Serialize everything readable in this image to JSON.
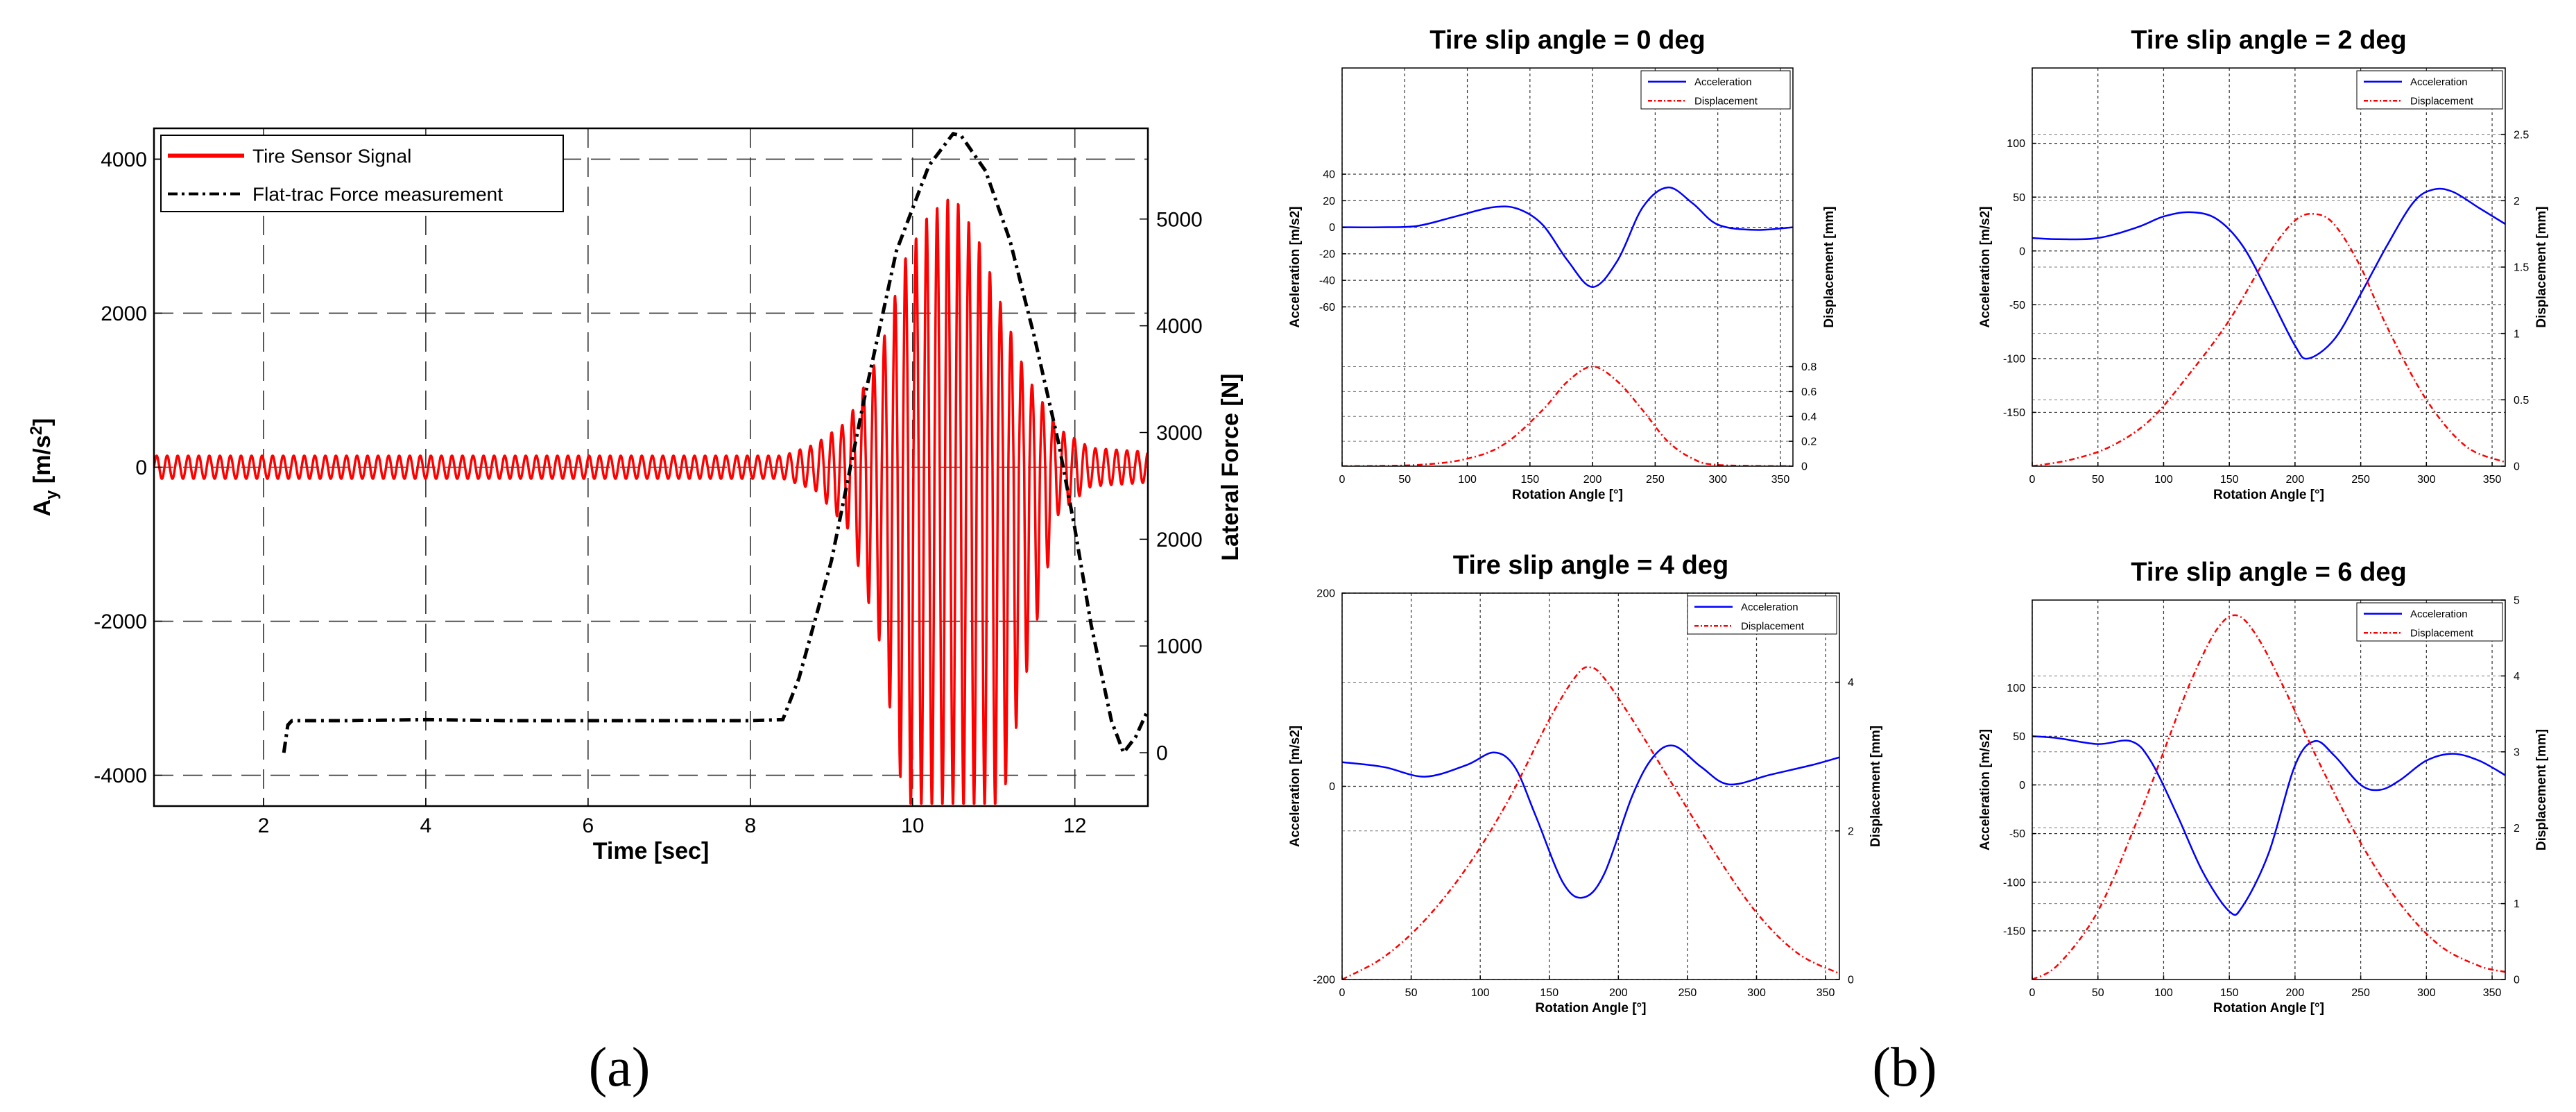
{
  "figure": {
    "panel_a_label": "(a)",
    "panel_b_label": "(b)"
  },
  "colors": {
    "red": "#ff0000",
    "blue": "#0000ff",
    "black": "#000000",
    "grid": "#222222"
  },
  "chart_data": [
    {
      "id": "a",
      "type": "line",
      "title": "",
      "xlabel": "Time [sec]",
      "ylabel_left": "Ay [m/s2]",
      "ylabel_left_parts": {
        "base": "A",
        "sub": "y",
        "unit_base": " [m/s",
        "unit_sup": "2",
        "unit_close": "]"
      },
      "ylabel_right": "Lateral Force [N]",
      "xlim": [
        0.65,
        12.9
      ],
      "ylim_left": [
        -4400,
        4400
      ],
      "ylim_right": [
        -500,
        5850
      ],
      "xticks": [
        2,
        4,
        6,
        8,
        10,
        12
      ],
      "yticks_left": [
        -4000,
        -2000,
        0,
        2000,
        4000
      ],
      "yticks_right": [
        0,
        1000,
        2000,
        3000,
        4000,
        5000
      ],
      "grid": true,
      "legend": {
        "placement": "top-left",
        "entries": [
          "Tire Sensor Signal",
          "Flat-trac Force measurement"
        ]
      },
      "series": [
        {
          "name": "Tire Sensor Signal",
          "axis": "left",
          "style": "solid",
          "color": "#ff0000",
          "description": "Oscillating signal, about ±150 m/s2 until ~8.5 s, growing to a peak near ±3500 m/s2 (clipped below -4400) around 10–11 s, then decaying back to ±200 by 12.9 s",
          "envelope": {
            "t": [
              0.65,
              8.4,
              8.8,
              9.2,
              9.6,
              9.9,
              10.2,
              10.5,
              10.8,
              11.1,
              11.4,
              11.8,
              12.2,
              12.9
            ],
            "amp_pos": [
              150,
              150,
              300,
              600,
              1500,
              2700,
              3300,
              3550,
              3000,
              2100,
              1200,
              500,
              250,
              200
            ],
            "amp_neg": [
              150,
              150,
              300,
              800,
              2300,
              4400,
              4400,
              4400,
              4400,
              4400,
              2700,
              600,
              250,
              200
            ]
          },
          "period_s": 0.13
        },
        {
          "name": "Flat-trac Force measurement",
          "axis": "right",
          "style": "dash-dot",
          "color": "#000000",
          "x": [
            2.25,
            2.3,
            2.35,
            3.0,
            4.0,
            5.0,
            6.0,
            7.0,
            8.0,
            8.4,
            8.6,
            9.0,
            9.4,
            9.8,
            10.2,
            10.5,
            10.6,
            10.9,
            11.2,
            11.5,
            11.8,
            12.0,
            12.2,
            12.45,
            12.6,
            12.75,
            12.9
          ],
          "y": [
            0,
            260,
            300,
            300,
            310,
            300,
            300,
            300,
            300,
            310,
            700,
            1800,
            3300,
            4700,
            5500,
            5800,
            5780,
            5450,
            4800,
            3900,
            2900,
            2100,
            1200,
            300,
            0,
            150,
            400
          ]
        }
      ]
    },
    {
      "id": "b1",
      "type": "line",
      "title": "Tire slip angle = 0 deg",
      "xlabel": "Rotation Angle [°]",
      "ylabel_left": "Acceleration [m/s2]",
      "ylabel_right": "Displacement [mm]",
      "xlim": [
        0,
        360
      ],
      "ylim_left": [
        -180,
        120
      ],
      "ylim_right": [
        0,
        3.2
      ],
      "xticks": [
        0,
        50,
        100,
        150,
        200,
        250,
        300,
        350
      ],
      "yticks_left": [
        -60,
        -40,
        -20,
        0,
        20,
        40
      ],
      "yticks_right": [
        0,
        0.2,
        0.4,
        0.6,
        0.8
      ],
      "grid": true,
      "legend": {
        "placement": "top-right",
        "entries": [
          "Acceleration",
          "Displacement"
        ]
      },
      "series": [
        {
          "name": "Acceleration",
          "axis": "left",
          "style": "solid",
          "color": "#0000ff",
          "x": [
            0,
            30,
            60,
            90,
            120,
            140,
            160,
            180,
            200,
            220,
            240,
            260,
            280,
            300,
            330,
            360
          ],
          "y": [
            0,
            0,
            1,
            8,
            15,
            14,
            2,
            -25,
            -45,
            -25,
            15,
            30,
            18,
            2,
            -2,
            0
          ]
        },
        {
          "name": "Displacement",
          "axis": "right",
          "style": "dash-dot",
          "color": "#ff0000",
          "x": [
            0,
            60,
            100,
            130,
            160,
            180,
            200,
            220,
            240,
            260,
            280,
            300,
            360
          ],
          "y": [
            0,
            0.01,
            0.06,
            0.18,
            0.45,
            0.68,
            0.8,
            0.68,
            0.45,
            0.2,
            0.06,
            0.01,
            0
          ]
        }
      ]
    },
    {
      "id": "b2",
      "type": "line",
      "title": "Tire slip angle = 2 deg",
      "xlabel": "Rotation Angle [°]",
      "ylabel_left": "Acceleration [m/s2]",
      "ylabel_right": "Displacement [mm]",
      "xlim": [
        0,
        360
      ],
      "ylim_left": [
        -200,
        170
      ],
      "ylim_right": [
        0,
        3.0
      ],
      "xticks": [
        0,
        50,
        100,
        150,
        200,
        250,
        300,
        350
      ],
      "yticks_left": [
        -150,
        -100,
        -50,
        0,
        50,
        100
      ],
      "yticks_right": [
        0,
        0.5,
        1,
        1.5,
        2,
        2.5
      ],
      "grid": true,
      "legend": {
        "placement": "top-right",
        "entries": [
          "Acceleration",
          "Displacement"
        ]
      },
      "series": [
        {
          "name": "Acceleration",
          "axis": "left",
          "style": "solid",
          "color": "#0000ff",
          "x": [
            0,
            20,
            50,
            80,
            100,
            120,
            140,
            160,
            180,
            200,
            210,
            230,
            250,
            270,
            290,
            305,
            320,
            340,
            360
          ],
          "y": [
            12,
            11,
            12,
            22,
            32,
            36,
            30,
            5,
            -40,
            -88,
            -100,
            -82,
            -40,
            5,
            45,
            57,
            55,
            40,
            25
          ]
        },
        {
          "name": "Displacement",
          "axis": "right",
          "style": "dash-dot",
          "color": "#ff0000",
          "x": [
            0,
            30,
            60,
            90,
            120,
            150,
            180,
            200,
            215,
            230,
            250,
            270,
            300,
            330,
            360
          ],
          "y": [
            0,
            0.05,
            0.15,
            0.35,
            0.7,
            1.1,
            1.6,
            1.85,
            1.9,
            1.82,
            1.5,
            1.05,
            0.5,
            0.15,
            0.03
          ]
        }
      ]
    },
    {
      "id": "b3",
      "type": "line",
      "title": "Tire slip angle = 4 deg",
      "xlabel": "Rotation Angle [°]",
      "ylabel_left": "Acceleration [m/s2]",
      "ylabel_right": "Displacement [mm]",
      "xlim": [
        0,
        360
      ],
      "ylim_left": [
        -200,
        200
      ],
      "ylim_right": [
        0,
        5.2
      ],
      "xticks": [
        0,
        50,
        100,
        150,
        200,
        250,
        300,
        350
      ],
      "yticks_left": [
        -200,
        0,
        200
      ],
      "yticks_right": [
        0,
        2,
        4
      ],
      "grid": true,
      "legend": {
        "placement": "top-right",
        "entries": [
          "Acceleration",
          "Displacement"
        ]
      },
      "series": [
        {
          "name": "Acceleration",
          "axis": "left",
          "style": "solid",
          "color": "#0000ff",
          "x": [
            0,
            30,
            60,
            90,
            110,
            125,
            140,
            160,
            175,
            190,
            210,
            225,
            240,
            260,
            280,
            310,
            340,
            360
          ],
          "y": [
            25,
            20,
            10,
            22,
            35,
            20,
            -30,
            -100,
            -115,
            -90,
            -10,
            30,
            42,
            20,
            2,
            12,
            22,
            30
          ]
        },
        {
          "name": "Displacement",
          "axis": "right",
          "style": "dash-dot",
          "color": "#ff0000",
          "x": [
            0,
            30,
            60,
            90,
            120,
            150,
            170,
            180,
            190,
            210,
            240,
            270,
            300,
            330,
            360
          ],
          "y": [
            0,
            0.3,
            0.8,
            1.5,
            2.4,
            3.5,
            4.1,
            4.2,
            4.05,
            3.5,
            2.6,
            1.7,
            0.9,
            0.35,
            0.08
          ]
        }
      ]
    },
    {
      "id": "b4",
      "type": "line",
      "title": "Tire slip angle = 6 deg",
      "xlabel": "Rotation Angle [°]",
      "ylabel_left": "Acceleration [m/s2]",
      "ylabel_right": "Displacement [mm]",
      "xlim": [
        0,
        360
      ],
      "ylim_left": [
        -200,
        190
      ],
      "ylim_right": [
        0,
        5
      ],
      "xticks": [
        0,
        50,
        100,
        150,
        200,
        250,
        300,
        350
      ],
      "yticks_left": [
        -150,
        -100,
        -50,
        0,
        50,
        100
      ],
      "yticks_right": [
        0,
        1,
        2,
        3,
        4,
        5
      ],
      "grid": true,
      "legend": {
        "placement": "top-right",
        "entries": [
          "Acceleration",
          "Displacement"
        ]
      },
      "series": [
        {
          "name": "Acceleration",
          "axis": "left",
          "style": "solid",
          "color": "#0000ff",
          "x": [
            0,
            20,
            50,
            75,
            90,
            110,
            130,
            150,
            160,
            180,
            200,
            215,
            230,
            250,
            265,
            280,
            300,
            320,
            340,
            360
          ],
          "y": [
            50,
            48,
            42,
            45,
            25,
            -30,
            -90,
            -130,
            -125,
            -70,
            20,
            45,
            30,
            0,
            -5,
            5,
            25,
            32,
            25,
            10
          ]
        },
        {
          "name": "Displacement",
          "axis": "right",
          "style": "dash-dot",
          "color": "#ff0000",
          "x": [
            0,
            20,
            50,
            80,
            100,
            120,
            140,
            155,
            170,
            190,
            220,
            250,
            280,
            310,
            340,
            360
          ],
          "y": [
            0,
            0.2,
            0.9,
            2.1,
            3.0,
            3.9,
            4.6,
            4.8,
            4.55,
            3.9,
            2.8,
            1.8,
            1.0,
            0.45,
            0.18,
            0.1
          ]
        }
      ]
    }
  ]
}
